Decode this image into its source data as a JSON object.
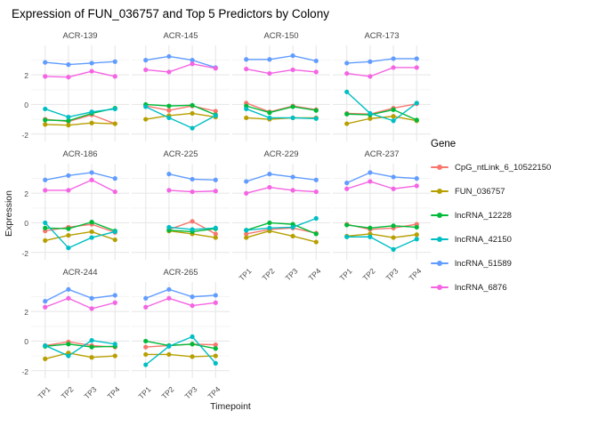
{
  "title": "Expression of FUN_036757 and Top 5 Predictors by Colony",
  "axes": {
    "x_label": "Timepoint",
    "y_label": "Expression",
    "x_ticks": [
      "TP1",
      "TP2",
      "TP3",
      "TP4"
    ],
    "y_ticks": [
      2,
      0,
      -2
    ]
  },
  "legend": {
    "title": "Gene",
    "entries": [
      {
        "label": "CpG_ntLink_6_10522150",
        "color": "#F8766D"
      },
      {
        "label": "FUN_036757",
        "color": "#B79F00"
      },
      {
        "label": "lncRNA_12228",
        "color": "#00BA38"
      },
      {
        "label": "lncRNA_42150",
        "color": "#00BFC4"
      },
      {
        "label": "lncRNA_51589",
        "color": "#619CFF"
      },
      {
        "label": "lncRNA_6876",
        "color": "#F564E3"
      }
    ]
  },
  "chart_data": {
    "type": "line",
    "x": [
      "TP1",
      "TP2",
      "TP3",
      "TP4"
    ],
    "ylim": [
      -2.5,
      4.0
    ],
    "grid": {
      "major_y": [
        2,
        0,
        -2
      ],
      "minor_y": [
        3,
        1,
        -1
      ],
      "color_major": "#E8E8E8",
      "color_minor": "#F0F0F0"
    },
    "legend_position": "right",
    "series_names": [
      "CpG_ntLink_6_10522150",
      "FUN_036757",
      "lncRNA_12228",
      "lncRNA_42150",
      "lncRNA_51589",
      "lncRNA_6876"
    ],
    "series_colors": [
      "#F8766D",
      "#B79F00",
      "#00BA38",
      "#00BFC4",
      "#619CFF",
      "#F564E3"
    ],
    "facets": [
      {
        "colony": "ACR-139",
        "values": [
          [
            -1.0,
            -1.15,
            -0.7,
            -1.3
          ],
          [
            -1.35,
            -1.4,
            -1.25,
            -1.3
          ],
          [
            -1.05,
            -1.1,
            -0.6,
            -0.25
          ],
          [
            -0.3,
            -0.85,
            -0.5,
            -0.3
          ],
          [
            2.85,
            2.7,
            2.8,
            2.9
          ],
          [
            1.9,
            1.85,
            2.25,
            1.9
          ]
        ]
      },
      {
        "colony": "ACR-145",
        "values": [
          [
            -0.1,
            -0.4,
            -0.1,
            -0.45
          ],
          [
            -1.0,
            -0.75,
            -0.6,
            -0.85
          ],
          [
            0.0,
            -0.1,
            -0.05,
            -0.7
          ],
          [
            -0.15,
            -0.9,
            -1.6,
            -0.75
          ],
          [
            3.0,
            3.25,
            3.0,
            2.5
          ],
          [
            2.35,
            2.2,
            2.75,
            2.45
          ]
        ]
      },
      {
        "colony": "ACR-150",
        "values": [
          [
            0.1,
            -0.5,
            -0.1,
            -0.35
          ],
          [
            -0.9,
            -1.0,
            -0.9,
            -0.9
          ],
          [
            -0.1,
            -0.55,
            -0.15,
            -0.4
          ],
          [
            -0.3,
            -0.9,
            -0.9,
            -0.95
          ],
          [
            3.05,
            3.05,
            3.3,
            2.95
          ],
          [
            2.4,
            2.1,
            2.35,
            2.2
          ]
        ]
      },
      {
        "colony": "ACR-173",
        "values": [
          [
            -0.6,
            -0.65,
            -0.25,
            0.05
          ],
          [
            -1.3,
            -0.95,
            -0.8,
            -1.1
          ],
          [
            -0.65,
            -0.7,
            -0.35,
            -1.05
          ],
          [
            0.85,
            -0.6,
            -1.1,
            0.1
          ],
          [
            2.8,
            2.9,
            3.1,
            3.1
          ],
          [
            2.1,
            1.9,
            2.5,
            2.5
          ]
        ]
      },
      {
        "colony": "ACR-186",
        "values": [
          [
            -0.55,
            -0.3,
            -0.1,
            -0.65
          ],
          [
            -1.2,
            -0.85,
            -0.6,
            -1.15
          ],
          [
            -0.35,
            -0.4,
            0.05,
            -0.55
          ],
          [
            0.0,
            -1.7,
            -1.0,
            -0.6
          ],
          [
            2.9,
            3.2,
            3.4,
            3.0
          ],
          [
            2.2,
            2.2,
            2.9,
            2.1
          ]
        ]
      },
      {
        "colony": "ACR-225",
        "values": [
          [
            null,
            -0.45,
            0.1,
            -0.75
          ],
          [
            null,
            -0.55,
            -0.75,
            -1.0
          ],
          [
            null,
            -0.5,
            -0.6,
            -0.4
          ],
          [
            null,
            -0.3,
            -0.45,
            -0.35
          ],
          [
            null,
            3.3,
            2.95,
            2.9
          ],
          [
            null,
            2.2,
            2.1,
            2.15
          ]
        ]
      },
      {
        "colony": "ACR-229",
        "values": [
          [
            -0.75,
            -0.45,
            -0.35,
            -0.7
          ],
          [
            -1.0,
            -0.55,
            -0.9,
            -1.3
          ],
          [
            -0.5,
            0.0,
            -0.1,
            -0.75
          ],
          [
            -0.5,
            -0.35,
            -0.3,
            0.3
          ],
          [
            2.8,
            3.3,
            3.1,
            2.9
          ],
          [
            2.0,
            2.4,
            2.2,
            2.1
          ]
        ]
      },
      {
        "colony": "ACR-237",
        "values": [
          [
            -0.1,
            -0.45,
            -0.35,
            -0.1
          ],
          [
            -0.9,
            -0.75,
            -1.0,
            -0.8
          ],
          [
            -0.15,
            -0.35,
            -0.2,
            -0.3
          ],
          [
            -0.95,
            -0.95,
            -1.8,
            -1.1
          ],
          [
            2.7,
            3.4,
            3.1,
            3.0
          ],
          [
            2.3,
            2.8,
            2.3,
            2.5
          ]
        ]
      },
      {
        "colony": "ACR-244",
        "values": [
          [
            -0.3,
            -0.05,
            -0.3,
            -0.4
          ],
          [
            -1.2,
            -0.8,
            -1.1,
            -1.0
          ],
          [
            -0.35,
            -0.2,
            -0.4,
            -0.35
          ],
          [
            -0.3,
            -1.0,
            0.05,
            -0.2
          ],
          [
            2.7,
            3.5,
            2.9,
            3.1
          ],
          [
            2.3,
            2.9,
            2.2,
            2.6
          ]
        ]
      },
      {
        "colony": "ACR-265",
        "values": [
          [
            -0.4,
            -0.3,
            -0.2,
            -0.25
          ],
          [
            -0.9,
            -0.9,
            -1.05,
            -1.0
          ],
          [
            0.0,
            -0.3,
            -0.2,
            -0.5
          ],
          [
            -1.6,
            -0.35,
            0.3,
            -1.5
          ],
          [
            2.9,
            3.5,
            3.0,
            3.1
          ],
          [
            2.3,
            2.9,
            2.4,
            2.6
          ]
        ]
      }
    ]
  }
}
